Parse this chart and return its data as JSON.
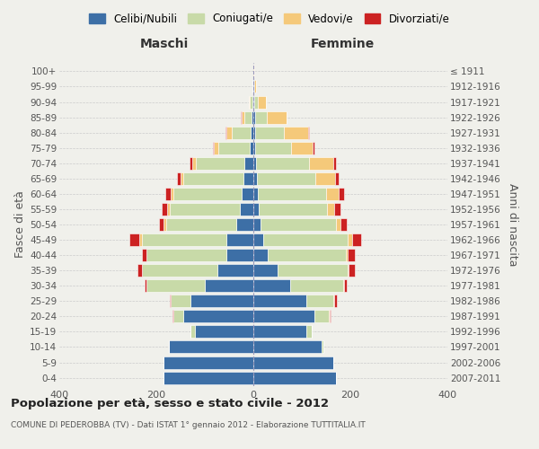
{
  "age_groups": [
    "0-4",
    "5-9",
    "10-14",
    "15-19",
    "20-24",
    "25-29",
    "30-34",
    "35-39",
    "40-44",
    "45-49",
    "50-54",
    "55-59",
    "60-64",
    "65-69",
    "70-74",
    "75-79",
    "80-84",
    "85-89",
    "90-94",
    "95-99",
    "100+"
  ],
  "birth_years": [
    "2007-2011",
    "2002-2006",
    "1997-2001",
    "1992-1996",
    "1987-1991",
    "1982-1986",
    "1977-1981",
    "1972-1976",
    "1967-1971",
    "1962-1966",
    "1957-1961",
    "1952-1956",
    "1947-1951",
    "1942-1946",
    "1937-1941",
    "1932-1936",
    "1927-1931",
    "1922-1926",
    "1917-1921",
    "1912-1916",
    "≤ 1911"
  ],
  "male": {
    "celibi": [
      185,
      185,
      175,
      120,
      145,
      130,
      100,
      75,
      55,
      55,
      35,
      28,
      25,
      20,
      18,
      8,
      5,
      4,
      2,
      1,
      0
    ],
    "coniugati": [
      0,
      0,
      0,
      10,
      20,
      40,
      120,
      155,
      165,
      175,
      145,
      145,
      140,
      125,
      100,
      65,
      40,
      15,
      5,
      1,
      0
    ],
    "vedovi": [
      0,
      0,
      0,
      0,
      0,
      0,
      0,
      0,
      0,
      5,
      5,
      5,
      5,
      5,
      8,
      8,
      10,
      5,
      2,
      0,
      0
    ],
    "divorziati": [
      0,
      0,
      0,
      0,
      2,
      2,
      5,
      8,
      10,
      20,
      10,
      10,
      12,
      8,
      5,
      2,
      2,
      2,
      0,
      0,
      0
    ]
  },
  "female": {
    "nubili": [
      170,
      165,
      140,
      110,
      125,
      110,
      75,
      50,
      30,
      20,
      15,
      12,
      10,
      8,
      5,
      3,
      3,
      3,
      2,
      1,
      0
    ],
    "coniugate": [
      0,
      0,
      5,
      10,
      30,
      55,
      110,
      145,
      160,
      175,
      155,
      140,
      140,
      120,
      110,
      75,
      60,
      25,
      8,
      1,
      0
    ],
    "vedove": [
      0,
      0,
      0,
      0,
      2,
      2,
      2,
      2,
      5,
      8,
      10,
      15,
      25,
      40,
      50,
      45,
      50,
      40,
      15,
      4,
      1
    ],
    "divorziate": [
      0,
      0,
      0,
      0,
      2,
      5,
      5,
      12,
      15,
      20,
      12,
      12,
      12,
      8,
      5,
      2,
      2,
      1,
      1,
      0,
      0
    ]
  },
  "colors": {
    "celibi": "#3d6fa6",
    "coniugati": "#c8daa8",
    "vedovi": "#f5c97a",
    "divorziati": "#cc2222"
  },
  "title": "Popolazione per età, sesso e stato civile - 2012",
  "subtitle": "COMUNE DI PEDEROBBA (TV) - Dati ISTAT 1° gennaio 2012 - Elaborazione TUTTITALIA.IT",
  "xlabel_left": "Maschi",
  "xlabel_right": "Femmine",
  "ylabel_left": "Fasce di età",
  "ylabel_right": "Anni di nascita",
  "xlim": 400,
  "legend_labels": [
    "Celibi/Nubili",
    "Coniugati/e",
    "Vedovi/e",
    "Divorziati/e"
  ],
  "bg_color": "#f0f0eb",
  "bar_edge_color": "#ffffff"
}
